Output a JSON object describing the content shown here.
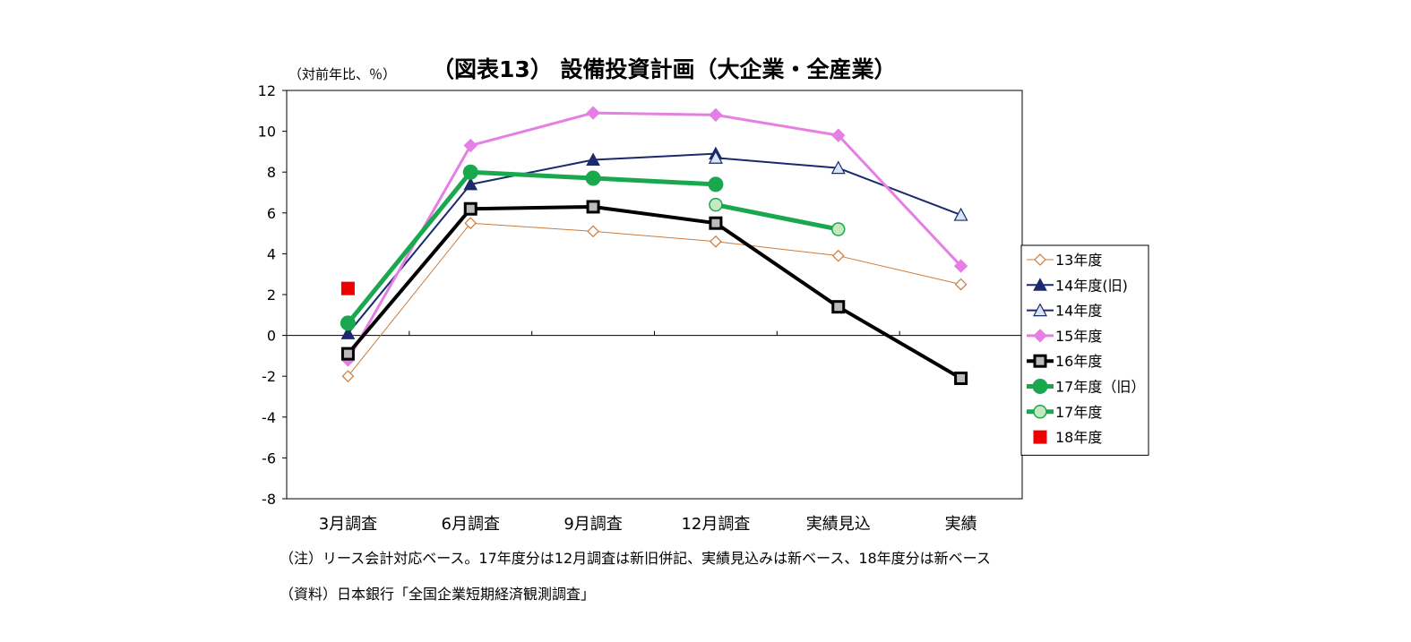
{
  "chart_data": {
    "type": "line",
    "title": "（図表13） 設備投資計画（大企業・全産業）",
    "ylabel": "（対前年比、％）",
    "xlabel": "",
    "ylim": [
      -8,
      12
    ],
    "yticks": [
      12,
      10,
      8,
      6,
      4,
      2,
      0,
      -2,
      -4,
      -6,
      -8
    ],
    "categories": [
      "3月調査",
      "6月調査",
      "9月調査",
      "12月調査",
      "実績見込",
      "実績"
    ],
    "legend_position": "right",
    "series": [
      {
        "name": "13年度",
        "color": "#cc7a3a",
        "marker": "diamond-open",
        "line_width": 1,
        "values": [
          -2.0,
          5.5,
          5.1,
          4.6,
          3.9,
          2.5
        ]
      },
      {
        "name": "14年度(旧)",
        "color": "#1a2a6c",
        "marker": "triangle-filled",
        "line_width": 2,
        "values": [
          0.1,
          7.4,
          8.6,
          8.9,
          null,
          null
        ]
      },
      {
        "name": "14年度",
        "color": "#1a2a6c",
        "marker": "triangle-open",
        "line_width": 2,
        "values": [
          null,
          null,
          null,
          8.7,
          8.2,
          5.9
        ]
      },
      {
        "name": "15年度",
        "color": "#e57ee5",
        "marker": "diamond-filled",
        "line_width": 3,
        "values": [
          -1.2,
          9.3,
          10.9,
          10.8,
          9.8,
          3.4
        ]
      },
      {
        "name": "16年度",
        "color": "#000000",
        "marker": "square-open",
        "line_width": 4,
        "values": [
          -0.9,
          6.2,
          6.3,
          5.5,
          1.4,
          -2.1
        ]
      },
      {
        "name": "17年度（旧）",
        "color": "#1aa84f",
        "marker": "circle-filled",
        "line_width": 5,
        "values": [
          0.6,
          8.0,
          7.7,
          7.4,
          null,
          null
        ]
      },
      {
        "name": "17年度",
        "color": "#1aa84f",
        "marker": "circle-light",
        "line_width": 5,
        "values": [
          null,
          null,
          null,
          6.4,
          5.2,
          null
        ]
      },
      {
        "name": "18年度",
        "color": "#ee0000",
        "marker": "square-filled",
        "line_width": 0,
        "values": [
          2.3,
          null,
          null,
          null,
          null,
          null
        ]
      }
    ]
  },
  "notes": {
    "note1": "（注）リース会計対応ベース。17年度分は12月調査は新旧併記、実績見込みは新ベース、18年度分は新ベース",
    "note2": "（資料）日本銀行「全国企業短期経済観測調査」"
  }
}
